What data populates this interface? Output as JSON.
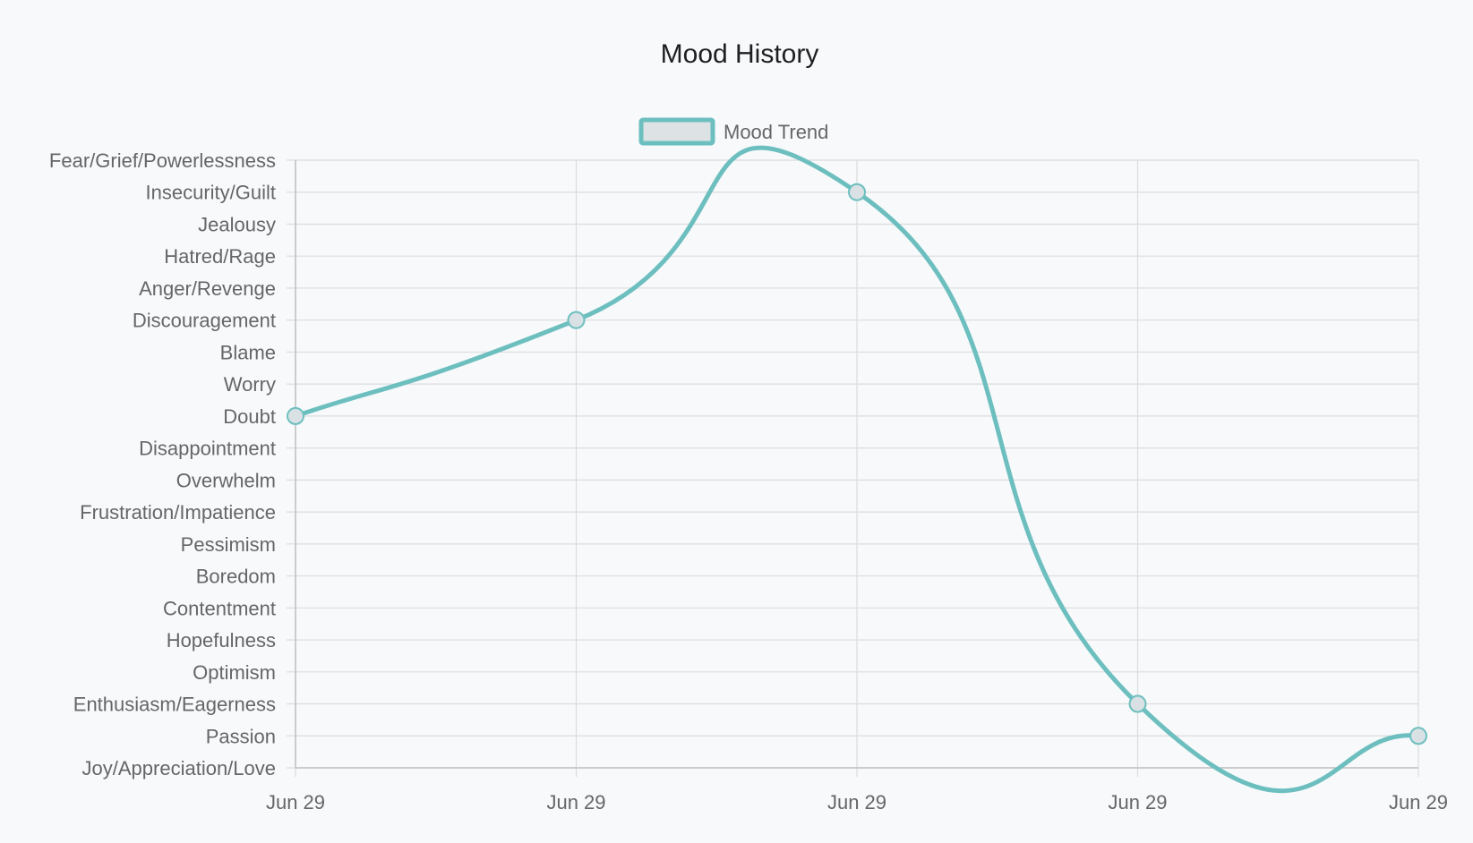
{
  "chart_data": {
    "type": "line",
    "title": "Mood History",
    "legend": {
      "position": "top-center"
    },
    "x": [
      "Jun 29",
      "Jun 29",
      "Jun 29",
      "Jun 29",
      "Jun 29"
    ],
    "y_categories": [
      "Joy/Appreciation/Love",
      "Passion",
      "Enthusiasm/Eagerness",
      "Optimism",
      "Hopefulness",
      "Contentment",
      "Boredom",
      "Pessimism",
      "Frustration/Impatience",
      "Overwhelm",
      "Disappointment",
      "Doubt",
      "Worry",
      "Blame",
      "Discouragement",
      "Anger/Revenge",
      "Hatred/Rage",
      "Jealousy",
      "Insecurity/Guilt",
      "Fear/Grief/Powerlessness"
    ],
    "series": [
      {
        "name": "Mood Trend",
        "values": [
          "Doubt",
          "Discouragement",
          "Insecurity/Guilt",
          "Enthusiasm/Eagerness",
          "Passion"
        ],
        "line_color": "#6dbfbf",
        "point_fill": "#d9e1e4",
        "legend_box_fill": "#dde3e5"
      }
    ],
    "grid": true,
    "colors": {
      "background": "#f7f9fb",
      "grid": "#dcdcdc",
      "axis": "#bfbfbf",
      "text": "#666666",
      "title": "#1f1f1f"
    }
  }
}
